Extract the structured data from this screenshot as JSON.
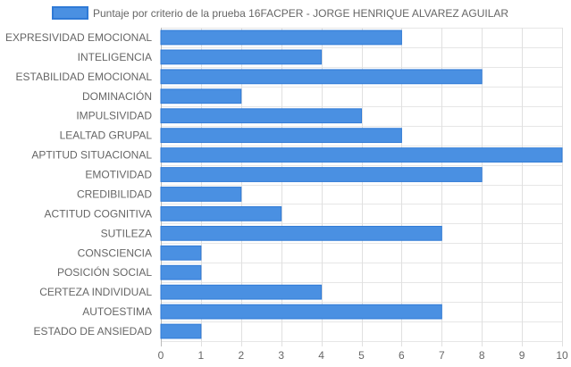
{
  "chart_data": {
    "type": "bar",
    "orientation": "horizontal",
    "categories": [
      "EXPRESIVIDAD EMOCIONAL",
      "INTELIGENCIA",
      "ESTABILIDAD EMOCIONAL",
      "DOMINACIÓN",
      "IMPULSIVIDAD",
      "LEALTAD GRUPAL",
      "APTITUD SITUACIONAL",
      "EMOTIVIDAD",
      "CREDIBILIDAD",
      "ACTITUD COGNITIVA",
      "SUTILEZA",
      "CONSCIENCIA",
      "POSICIÓN SOCIAL",
      "CERTEZA INDIVIDUAL",
      "AUTOESTIMA",
      "ESTADO DE ANSIEDAD"
    ],
    "series": [
      {
        "name": "Puntaje por criterio de la prueba 16FACPER - JORGE HENRIQUE ALVAREZ AGUILAR",
        "values": [
          6,
          4,
          8,
          2,
          5,
          6,
          10,
          8,
          2,
          3,
          7,
          1,
          1,
          4,
          7,
          1
        ],
        "color": "#4a90e2",
        "border_color": "#2f7ad6"
      }
    ],
    "xlim": [
      0,
      10
    ],
    "x_ticks": [
      "0",
      "1",
      "2",
      "3",
      "4",
      "5",
      "6",
      "7",
      "8",
      "9",
      "10"
    ],
    "grid": true,
    "legend_position": "top"
  }
}
